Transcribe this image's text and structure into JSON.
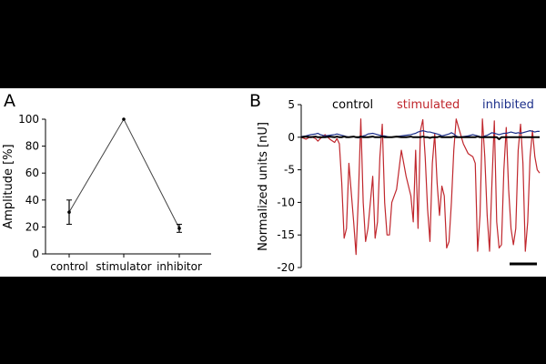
{
  "chart_data": [
    {
      "panel_label": "A",
      "type": "line",
      "categories": [
        "control",
        "stimulator",
        "inhibitor"
      ],
      "values": [
        31,
        100,
        19
      ],
      "errors": [
        9,
        0,
        3
      ],
      "ylabel": "Amplitude [%]",
      "ylim": [
        0,
        100
      ],
      "yticks": [
        0,
        20,
        40,
        60,
        80,
        100
      ],
      "grid": false
    },
    {
      "panel_label": "B",
      "type": "line",
      "ylabel": "Normalized units [nU]",
      "ylim": [
        -20,
        5
      ],
      "yticks": [
        5,
        0,
        -5,
        -10,
        -15,
        -20
      ],
      "grid": false,
      "legend_placement": "top",
      "x": [
        0,
        2,
        4,
        6,
        7,
        8,
        10,
        12,
        14,
        15,
        16,
        17,
        18,
        19,
        20,
        22,
        23,
        24,
        25,
        26,
        27,
        28,
        30,
        31,
        32,
        33,
        34,
        35,
        36,
        37,
        38,
        40,
        42,
        44,
        46,
        47,
        48,
        49,
        50,
        51,
        52,
        53,
        54,
        55,
        56,
        57,
        58,
        59,
        60,
        61,
        62,
        63,
        64,
        65,
        66,
        68,
        70,
        72,
        73,
        74,
        75,
        76,
        77,
        78,
        79,
        80,
        81,
        82,
        83,
        84,
        85,
        86,
        87,
        88,
        89,
        90,
        91,
        92,
        93,
        94,
        95,
        96,
        97,
        98,
        99,
        100
      ],
      "series": [
        {
          "name": "control",
          "color": "#000000",
          "values": [
            0.0,
            0.1,
            0.0,
            0.1,
            0.0,
            0.0,
            0.0,
            0.1,
            0.0,
            0.1,
            0.0,
            0.0,
            0.1,
            0.0,
            0.0,
            0.1,
            0.0,
            0.0,
            0.1,
            0.0,
            0.0,
            0.0,
            0.1,
            0.0,
            0.0,
            0.0,
            0.1,
            0.0,
            0.0,
            0.0,
            0.0,
            0.1,
            0.0,
            0.0,
            0.1,
            0.0,
            0.0,
            0.0,
            0.0,
            0.1,
            0.0,
            0.0,
            -0.1,
            0.0,
            0.0,
            0.0,
            0.1,
            0.0,
            0.0,
            0.0,
            0.0,
            0.0,
            0.1,
            0.0,
            0.0,
            0.0,
            0.0,
            0.0,
            0.0,
            0.1,
            0.0,
            0.0,
            0.0,
            0.0,
            0.0,
            0.0,
            0.0,
            0.0,
            -0.3,
            0.0,
            0.0,
            0.0,
            0.0,
            0.0,
            0.0,
            0.0,
            0.0,
            0.0,
            0.0,
            0.0,
            0.0,
            0.0,
            0.0,
            0.0,
            0.0,
            0.0
          ]
        },
        {
          "name": "stimulated",
          "color": "#c0272d",
          "values": [
            0.0,
            -0.3,
            0.1,
            -0.2,
            -0.6,
            -0.2,
            0.4,
            -0.3,
            -0.8,
            -0.2,
            -1.0,
            -7.0,
            -15.5,
            -14.0,
            -4.0,
            -13.0,
            -18.0,
            -9.0,
            2.8,
            -10.0,
            -16.0,
            -14.0,
            -6.0,
            -15.5,
            -13.0,
            -3.0,
            2.0,
            -10.0,
            -15.0,
            -15.0,
            -10.0,
            -8.0,
            -2.0,
            -6.0,
            -9.0,
            -13.0,
            -2.0,
            -14.0,
            1.0,
            2.7,
            -3.0,
            -11.0,
            -16.0,
            -4.0,
            0.5,
            -7.0,
            -12.0,
            -7.5,
            -9.0,
            -17.0,
            -16.0,
            -10.0,
            -2.0,
            2.8,
            1.5,
            -1.0,
            -2.5,
            -3.0,
            -4.0,
            -17.5,
            -12.0,
            2.8,
            -3.0,
            -12.0,
            -17.5,
            -7.0,
            2.5,
            -13.0,
            -17.0,
            -16.5,
            -5.0,
            1.5,
            -8.0,
            -14.0,
            -16.5,
            -14.0,
            -2.0,
            2.0,
            -4.0,
            -17.5,
            -13.0,
            -3.0,
            1.0,
            -3.0,
            -5.0,
            -5.5
          ]
        },
        {
          "name": "inhibited",
          "color": "#1c2f8a",
          "values": [
            0.1,
            0.2,
            0.4,
            0.5,
            0.6,
            0.4,
            0.2,
            0.3,
            0.4,
            0.5,
            0.4,
            0.3,
            0.2,
            0.1,
            0.0,
            0.1,
            0.0,
            -0.1,
            0.0,
            0.2,
            0.3,
            0.5,
            0.6,
            0.5,
            0.4,
            0.3,
            0.2,
            0.2,
            0.1,
            0.0,
            0.0,
            0.1,
            0.2,
            0.3,
            0.4,
            0.5,
            0.6,
            0.8,
            0.9,
            1.0,
            0.9,
            0.8,
            0.8,
            0.7,
            0.6,
            0.5,
            0.4,
            0.2,
            0.3,
            0.4,
            0.5,
            0.7,
            0.5,
            0.2,
            0.0,
            0.1,
            0.2,
            0.4,
            0.3,
            0.2,
            0.1,
            0.0,
            0.2,
            0.3,
            0.5,
            0.7,
            0.6,
            0.5,
            0.4,
            0.5,
            0.6,
            0.6,
            0.7,
            0.8,
            0.7,
            0.6,
            0.7,
            0.6,
            0.7,
            0.8,
            0.9,
            1.0,
            0.9,
            0.8,
            0.9,
            0.9
          ]
        }
      ]
    }
  ]
}
